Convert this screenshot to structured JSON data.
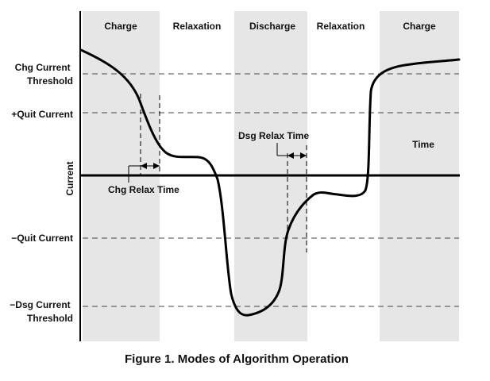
{
  "figure": {
    "caption": "Figure 1. Modes of Algorithm Operation",
    "y_axis_label": "Current",
    "time_label": "Time",
    "colors": {
      "band": "#e6e6e6",
      "curve": "#000000",
      "threshold_line": "#444444"
    }
  },
  "phases": [
    {
      "label": "Charge",
      "shaded": true
    },
    {
      "label": "Relaxation",
      "shaded": false
    },
    {
      "label": "Discharge",
      "shaded": true
    },
    {
      "label": "Relaxation",
      "shaded": false
    },
    {
      "label": "Charge",
      "shaded": true
    }
  ],
  "levels": [
    {
      "id": "chg-threshold",
      "lines": [
        "Chg Current",
        "Threshold"
      ]
    },
    {
      "id": "quit-plus",
      "lines": [
        "+Quit Current"
      ]
    },
    {
      "id": "quit-minus",
      "lines": [
        "−Quit Current"
      ]
    },
    {
      "id": "dsg-threshold",
      "lines": [
        "−Dsg Current",
        "Threshold"
      ]
    }
  ],
  "annotations": {
    "chg_relax_time": "Chg Relax Time",
    "dsg_relax_time": "Dsg Relax Time"
  }
}
